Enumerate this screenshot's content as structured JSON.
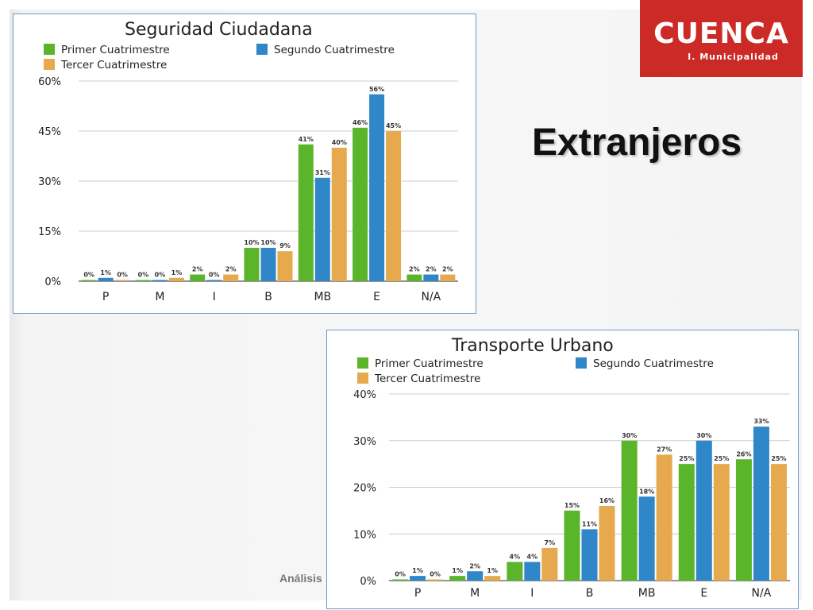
{
  "slide": {
    "title": "Extranjeros",
    "footer": "Análisis"
  },
  "logo": {
    "word": "CUENCA",
    "subtitle": "I. Municipalidad",
    "color": "#cc2a26"
  },
  "colors": {
    "primer": "#5bb52b",
    "segundo": "#2f86c9",
    "tercer": "#e6a94e"
  },
  "chart_data": [
    {
      "type": "bar",
      "title": "Seguridad Ciudadana",
      "categories": [
        "P",
        "M",
        "I",
        "B",
        "MB",
        "E",
        "N/A"
      ],
      "series": [
        {
          "name": "Primer Cuatrimestre",
          "values": [
            0,
            0,
            2,
            10,
            41,
            46,
            2
          ],
          "labels": [
            "0%",
            "0%",
            "2%",
            "10%",
            "41%",
            "46%",
            "2%"
          ]
        },
        {
          "name": "Segundo Cuatrimestre",
          "values": [
            1,
            0,
            0,
            10,
            31,
            56,
            2
          ],
          "labels": [
            "1%",
            "0%",
            "0%",
            "10%",
            "31%",
            "56%",
            "2%"
          ]
        },
        {
          "name": "Tercer Cuatrimestre",
          "values": [
            0,
            1,
            2,
            9,
            40,
            45,
            2
          ],
          "labels": [
            "0%",
            "1%",
            "2%",
            "9%",
            "40%",
            "45%",
            "2%"
          ]
        }
      ],
      "ylim": [
        0,
        60
      ],
      "yticks": [
        0,
        15,
        30,
        45,
        60
      ],
      "ytick_labels": [
        "0%",
        "15%",
        "30%",
        "45%",
        "60%"
      ],
      "grid": true,
      "legend": "top-left"
    },
    {
      "type": "bar",
      "title": "Transporte Urbano",
      "categories": [
        "P",
        "M",
        "I",
        "B",
        "MB",
        "E",
        "N/A"
      ],
      "series": [
        {
          "name": "Primer Cuatrimestre",
          "values": [
            0,
            1,
            4,
            15,
            30,
            25,
            26
          ],
          "labels": [
            "0%",
            "1%",
            "4%",
            "15%",
            "30%",
            "25%",
            "26%"
          ]
        },
        {
          "name": "Segundo Cuatrimestre",
          "values": [
            1,
            2,
            4,
            11,
            18,
            30,
            33
          ],
          "labels": [
            "1%",
            "2%",
            "4%",
            "11%",
            "18%",
            "30%",
            "33%"
          ]
        },
        {
          "name": "Tercer Cuatrimestre",
          "values": [
            0,
            1,
            7,
            16,
            27,
            25,
            25
          ],
          "labels": [
            "0%",
            "1%",
            "7%",
            "16%",
            "27%",
            "25%",
            "25%"
          ]
        }
      ],
      "ylim": [
        0,
        40
      ],
      "yticks": [
        0,
        10,
        20,
        30,
        40
      ],
      "ytick_labels": [
        "0%",
        "10%",
        "20%",
        "30%",
        "40%"
      ],
      "grid": true,
      "legend": "top-left"
    }
  ]
}
